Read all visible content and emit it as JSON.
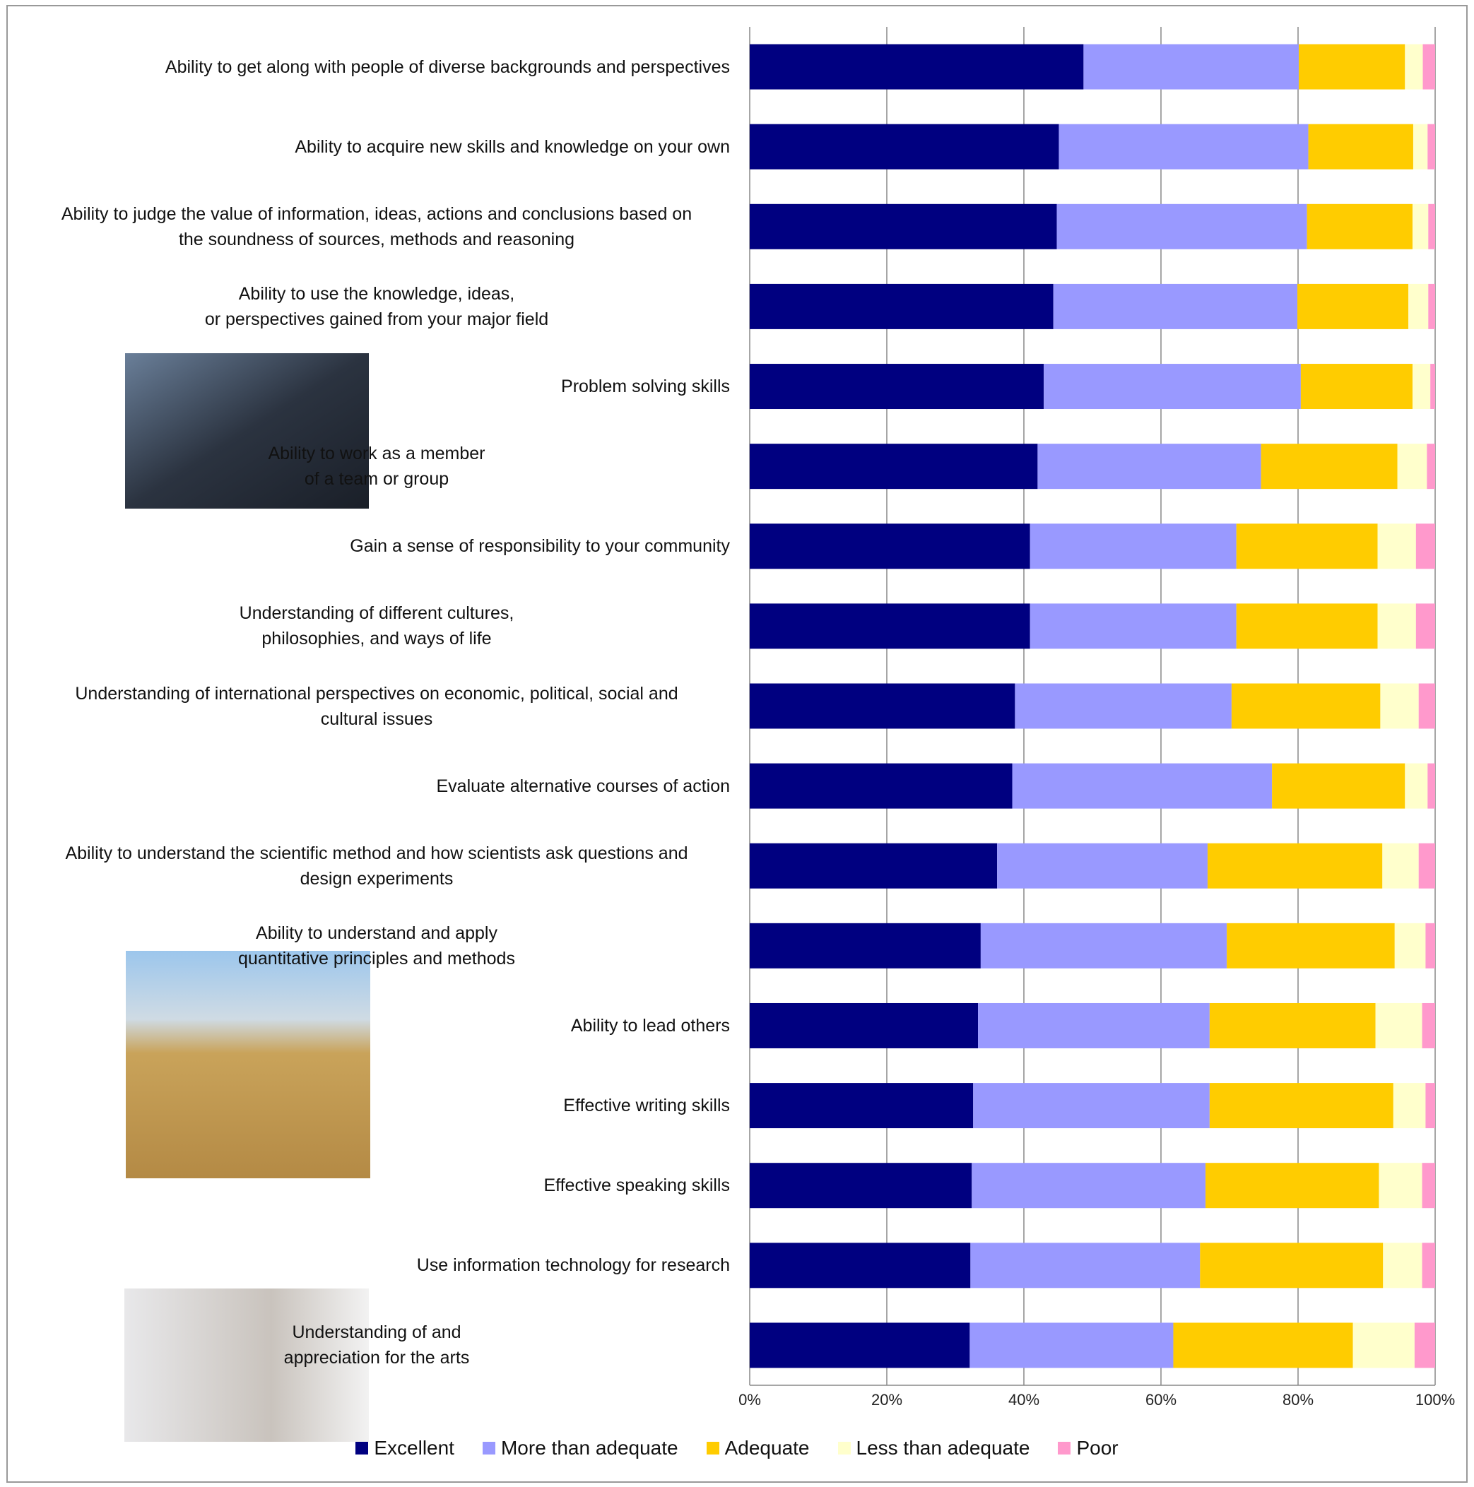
{
  "chart_data": {
    "type": "stacked-barh",
    "categories": [
      "Ability to get along with people of diverse backgrounds and perspectives",
      "Ability to acquire new skills and knowledge on your own",
      "Ability to judge the value of information, ideas, actions and conclusions based on\nthe soundness of sources, methods and reasoning",
      "Ability to use the knowledge, ideas,\nor perspectives gained from your major field",
      "Problem solving skills",
      "Ability to work as a member\nof a team or group",
      "Gain a sense of responsibility to your community",
      "Understanding of different cultures,\nphilosophies, and ways of life",
      "Understanding of international perspectives on economic, political, social and\ncultural issues",
      "Evaluate alternative courses of action",
      "Ability to understand the scientific method and how scientists ask questions and\ndesign experiments",
      "Ability to understand and apply\nquantitative principles and methods",
      "Ability to lead others",
      "Effective writing skills",
      "Effective speaking skills",
      "Use information technology for research",
      "Understanding of and\nappreciation for the arts"
    ],
    "series": [
      {
        "name": "Excellent",
        "color": "#000080",
        "values": [
          48.7,
          45.1,
          44.8,
          44.3,
          42.9,
          42.0,
          40.9,
          40.9,
          38.7,
          38.3,
          36.1,
          33.7,
          33.3,
          32.6,
          32.4,
          32.2,
          32.1
        ]
      },
      {
        "name": "More than adequate",
        "color": "#9999ff",
        "values": [
          31.4,
          36.4,
          36.5,
          35.6,
          37.5,
          32.6,
          30.1,
          30.1,
          31.6,
          37.9,
          30.7,
          35.9,
          33.8,
          34.5,
          34.1,
          33.5,
          29.7
        ]
      },
      {
        "name": "Adequate",
        "color": "#ffcc00",
        "values": [
          15.5,
          15.3,
          15.4,
          16.2,
          16.3,
          19.9,
          20.6,
          20.6,
          21.7,
          19.4,
          25.5,
          24.5,
          24.2,
          26.8,
          25.3,
          26.7,
          26.2
        ]
      },
      {
        "name": "Less than adequate",
        "color": "#ffffcc",
        "values": [
          2.6,
          2.1,
          2.3,
          2.9,
          2.6,
          4.3,
          5.6,
          5.6,
          5.6,
          3.3,
          5.3,
          4.5,
          6.8,
          4.7,
          6.3,
          5.7,
          9.0
        ]
      },
      {
        "name": "Poor",
        "color": "#ff99cc",
        "values": [
          1.8,
          1.1,
          1.0,
          1.0,
          0.7,
          1.2,
          2.8,
          2.8,
          2.4,
          1.1,
          2.4,
          1.4,
          1.9,
          1.4,
          1.9,
          1.9,
          3.0
        ]
      }
    ],
    "xlim": [
      0,
      100
    ],
    "xticks": [
      {
        "value": 0,
        "label": "0%"
      },
      {
        "value": 20,
        "label": "20%"
      },
      {
        "value": 40,
        "label": "40%"
      },
      {
        "value": 60,
        "label": "60%"
      },
      {
        "value": 80,
        "label": "80%"
      },
      {
        "value": 100,
        "label": "100%"
      }
    ],
    "grid": true,
    "legend": "bottom"
  }
}
